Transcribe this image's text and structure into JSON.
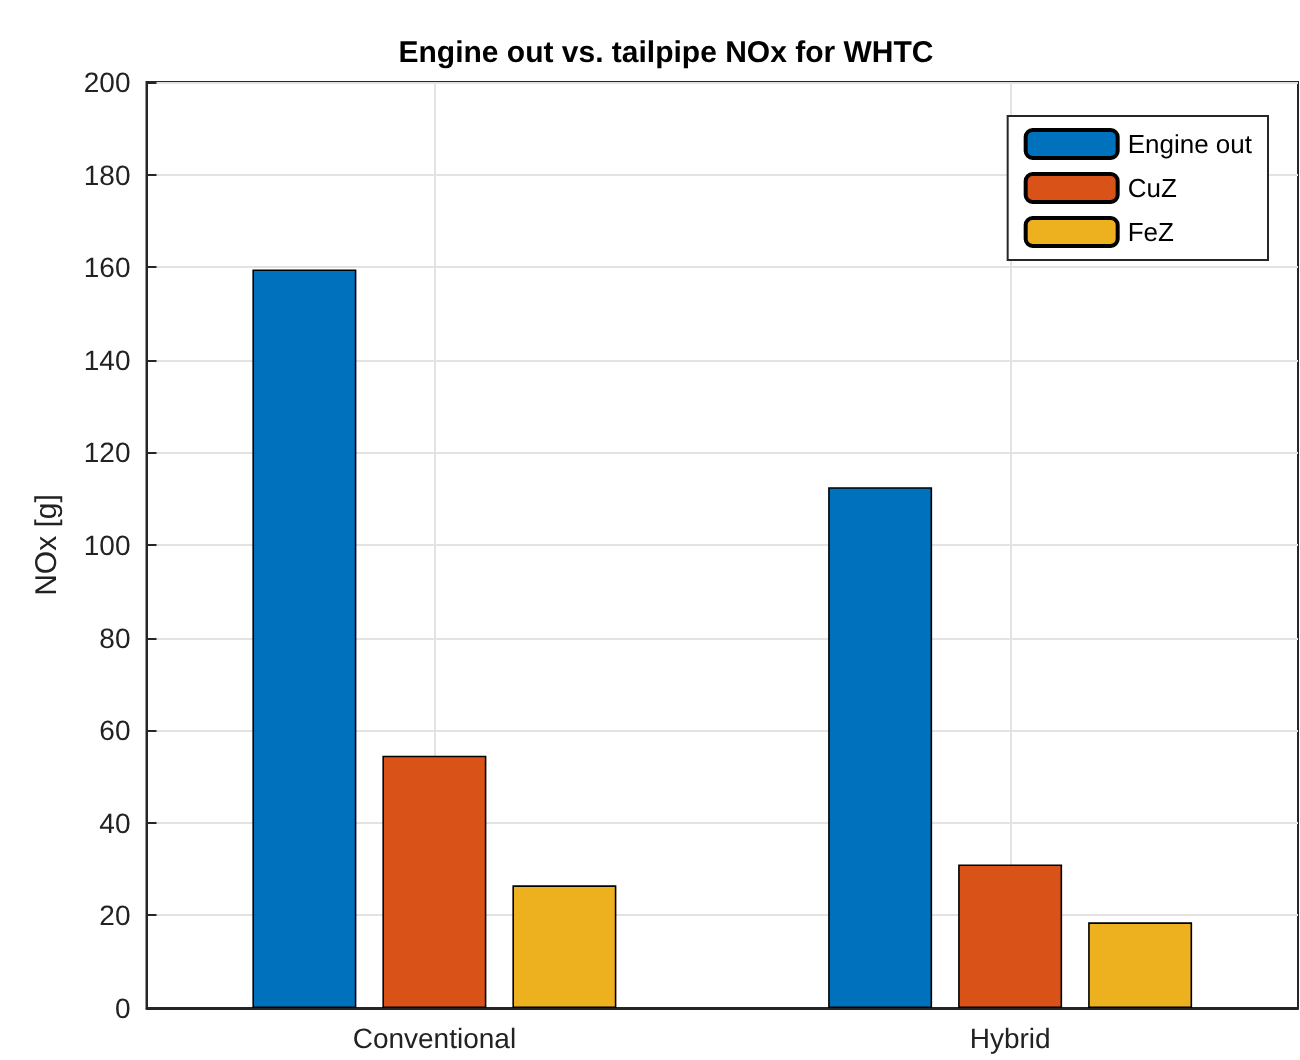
{
  "chart_data": {
    "type": "bar",
    "title": "Engine out vs. tailpipe NOx for WHTC",
    "ylabel": "NOx [g]",
    "categories": [
      "Conventional",
      "Hybrid"
    ],
    "series": [
      {
        "name": "Engine out",
        "color": "#0072bd",
        "values": [
          159.5,
          112.5
        ]
      },
      {
        "name": "CuZ",
        "color": "#d95319",
        "values": [
          54.5,
          31
        ]
      },
      {
        "name": "FeZ",
        "color": "#edb120",
        "values": [
          26.5,
          18.5
        ]
      }
    ],
    "ylim": [
      0,
      200
    ],
    "yticks": [
      0,
      20,
      40,
      60,
      80,
      100,
      120,
      140,
      160,
      180,
      200
    ],
    "grid": true,
    "legend": "top right"
  }
}
